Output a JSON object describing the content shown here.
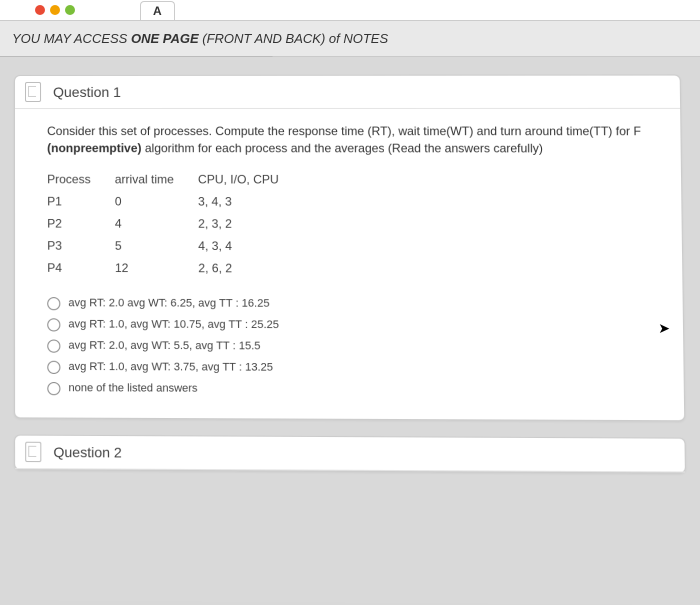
{
  "topbar": {
    "dots": [
      "#e94b35",
      "#f2a100",
      "#7bbf3a"
    ],
    "tab_label": "A"
  },
  "note": "YOU MAY ACCESS ONE PAGE (FRONT AND BACK) of NOTES",
  "q1": {
    "title": "Question 1",
    "prompt_pre": "Consider this set of processes. Compute the  response time (RT), wait time(WT) and turn around time(TT) for F",
    "prompt_bold": "(nonpreemptive)",
    "prompt_post": " algorithm for each process and the averages (Read the answers carefully)",
    "table": {
      "headers": [
        "Process",
        "arrival time",
        "CPU, I/O, CPU"
      ],
      "rows": [
        [
          "P1",
          "0",
          "3,  4,  3"
        ],
        [
          "P2",
          "4",
          "2,  3,  2"
        ],
        [
          "P3",
          "5",
          "4,  3,  4"
        ],
        [
          "P4",
          "12",
          "2,  6,  2"
        ]
      ]
    },
    "options": [
      "avg RT: 2.0 avg WT: 6.25, avg TT : 16.25",
      "avg RT: 1.0, avg WT: 10.75, avg TT : 25.25",
      "avg RT: 2.0, avg WT: 5.5, avg TT : 15.5",
      "avg RT: 1.0, avg WT: 3.75, avg TT : 13.25",
      "none of the listed answers"
    ]
  },
  "q2": {
    "title": "Question 2"
  }
}
